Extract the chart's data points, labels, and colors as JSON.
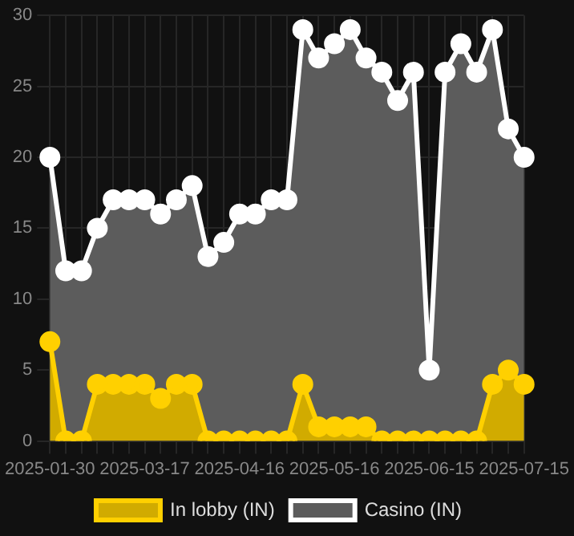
{
  "chart_data": {
    "type": "area",
    "categories": [
      "2025-01-30",
      null,
      null,
      null,
      null,
      null,
      "2025-03-17",
      null,
      null,
      null,
      null,
      null,
      "2025-04-16",
      null,
      null,
      null,
      null,
      null,
      "2025-05-16",
      null,
      null,
      null,
      null,
      null,
      "2025-06-15",
      null,
      null,
      null,
      null,
      null,
      "2025-07-15"
    ],
    "series": [
      {
        "name": "In lobby (IN)",
        "color": "#ffd000",
        "values": [
          7,
          0,
          0,
          4,
          4,
          4,
          4,
          3,
          4,
          4,
          0,
          0,
          0,
          0,
          0,
          0,
          4,
          1,
          1,
          1,
          1,
          0,
          0,
          0,
          0,
          0,
          0,
          0,
          4,
          5,
          4
        ]
      },
      {
        "name": "Casino (IN)",
        "color": "#ffffff",
        "values": [
          20,
          12,
          12,
          15,
          17,
          17,
          17,
          16,
          17,
          18,
          13,
          14,
          16,
          16,
          17,
          17,
          29,
          27,
          28,
          29,
          27,
          26,
          24,
          26,
          5,
          26,
          28,
          26,
          29,
          22,
          20
        ]
      }
    ],
    "ylim": [
      0,
      30
    ],
    "yticks": [
      0,
      5,
      10,
      15,
      20,
      25,
      30
    ],
    "grid": true,
    "legend": "bottom",
    "marker": "circle"
  }
}
